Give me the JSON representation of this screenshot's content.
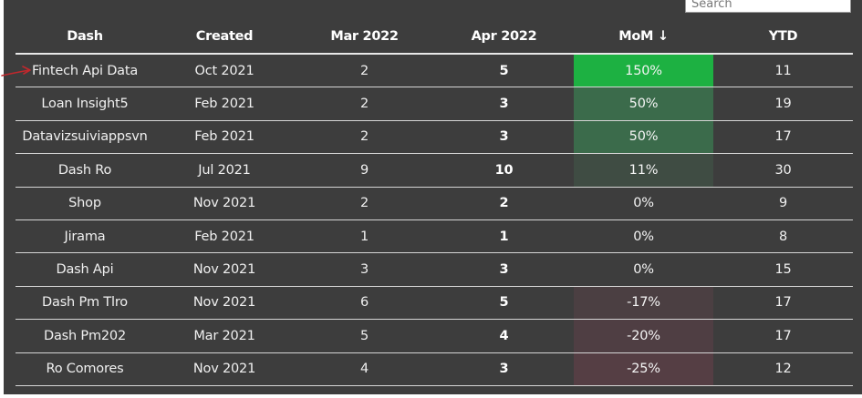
{
  "search": {
    "placeholder": "Search"
  },
  "table": {
    "headers": [
      "Dash",
      "Created",
      "Mar 2022",
      "Apr 2022",
      "MoM ↓",
      "YTD"
    ],
    "rows": [
      {
        "dash": "Fintech Api Data",
        "created": "Oct 2021",
        "mar": "2",
        "apr": "5",
        "mom": "150%",
        "ytd": "11",
        "mom_color": "#1db142"
      },
      {
        "dash": "Loan Insight5",
        "created": "Feb 2021",
        "mar": "2",
        "apr": "3",
        "mom": "50%",
        "ytd": "19",
        "mom_color": "#3b6b4b"
      },
      {
        "dash": "Datavizsuiviappsvn",
        "created": "Feb 2021",
        "mar": "2",
        "apr": "3",
        "mom": "50%",
        "ytd": "17",
        "mom_color": "#3b6b4b"
      },
      {
        "dash": "Dash Ro",
        "created": "Jul 2021",
        "mar": "9",
        "apr": "10",
        "mom": "11%",
        "ytd": "30",
        "mom_color": "#3f4c43"
      },
      {
        "dash": "Shop",
        "created": "Nov 2021",
        "mar": "2",
        "apr": "2",
        "mom": "0%",
        "ytd": "9",
        "mom_color": ""
      },
      {
        "dash": "Jirama",
        "created": "Feb 2021",
        "mar": "1",
        "apr": "1",
        "mom": "0%",
        "ytd": "8",
        "mom_color": ""
      },
      {
        "dash": "Dash Api",
        "created": "Nov 2021",
        "mar": "3",
        "apr": "3",
        "mom": "0%",
        "ytd": "15",
        "mom_color": ""
      },
      {
        "dash": "Dash Pm Tlro",
        "created": "Nov 2021",
        "mar": "6",
        "apr": "5",
        "mom": "-17%",
        "ytd": "17",
        "mom_color": "#4b3f42"
      },
      {
        "dash": "Dash Pm202",
        "created": "Mar 2021",
        "mar": "5",
        "apr": "4",
        "mom": "-20%",
        "ytd": "17",
        "mom_color": "#4f3e43"
      },
      {
        "dash": "Ro Comores",
        "created": "Nov 2021",
        "mar": "4",
        "apr": "3",
        "mom": "-25%",
        "ytd": "12",
        "mom_color": "#553e44"
      }
    ]
  },
  "annotation": {
    "arrow_color": "#c0282d"
  }
}
